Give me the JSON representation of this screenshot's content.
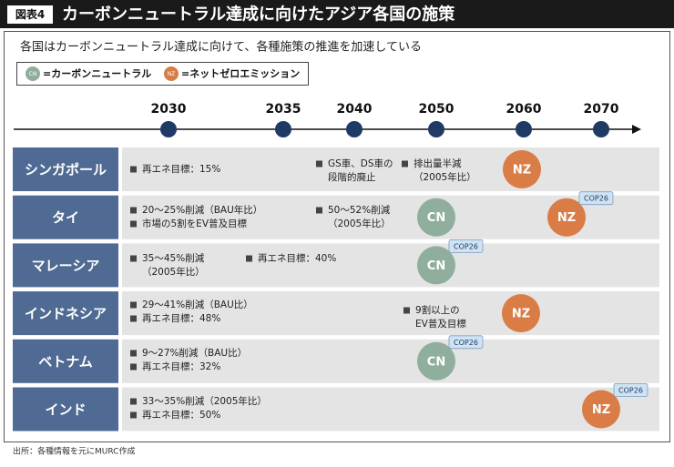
{
  "header": {
    "label": "図表4",
    "title": "カーボンニュートラル達成に向けたアジア各国の施策"
  },
  "subtitle": "各国はカーボンニュートラル達成に向けて、各種施策の推進を加速している",
  "legend": [
    {
      "symbol": "CN",
      "text": "=カーボンニュートラル"
    },
    {
      "symbol": "NZ",
      "text": "=ネットゼロエミッション"
    }
  ],
  "timeline": [
    "2030",
    "2035",
    "2040",
    "2050",
    "2060",
    "2070"
  ],
  "rows": [
    {
      "country": "シンガポール",
      "notes": [
        {
          "lines": [
            "再エネ目標：15%"
          ]
        },
        {
          "lines": [
            "GS車、DS車の",
            "段階的廃止"
          ]
        },
        {
          "lines": [
            "排出量半減",
            "（2005年比）"
          ]
        }
      ],
      "goals": [
        {
          "label": "NZ"
        }
      ]
    },
    {
      "country": "タイ",
      "notes": [
        {
          "lines": [
            "20～25%削減（BAU年比）"
          ]
        },
        {
          "lines": [
            "市場の5割をEV普及目標"
          ]
        },
        {
          "lines": [
            "50～52%削減",
            "（2005年比）"
          ]
        }
      ],
      "goals": [
        {
          "label": "CN"
        },
        {
          "label": "NZ",
          "tag": "COP26"
        }
      ]
    },
    {
      "country": "マレーシア",
      "notes": [
        {
          "lines": [
            "35～45%削減",
            "（2005年比）"
          ]
        },
        {
          "lines": [
            "再エネ目標：40%"
          ]
        }
      ],
      "goals": [
        {
          "label": "CN",
          "tag": "COP26"
        }
      ]
    },
    {
      "country": "インドネシア",
      "notes": [
        {
          "lines": [
            "29～41%削減（BAU比）"
          ]
        },
        {
          "lines": [
            "再エネ目標：48%"
          ]
        },
        {
          "lines": [
            "9割以上の",
            "EV普及目標"
          ]
        }
      ],
      "goals": [
        {
          "label": "NZ"
        }
      ]
    },
    {
      "country": "ベトナム",
      "notes": [
        {
          "lines": [
            "9～27%削減（BAU比）"
          ]
        },
        {
          "lines": [
            "再エネ目標：32%"
          ]
        }
      ],
      "goals": [
        {
          "label": "CN",
          "tag": "COP26"
        }
      ]
    },
    {
      "country": "インド",
      "notes": [
        {
          "lines": [
            "33～35%削減（2005年比）"
          ]
        },
        {
          "lines": [
            "再エネ目標：50%"
          ]
        }
      ],
      "goals": [
        {
          "label": "NZ",
          "tag": "COP26"
        }
      ]
    }
  ],
  "source": "出所：各種情報を元にMURC作成"
}
